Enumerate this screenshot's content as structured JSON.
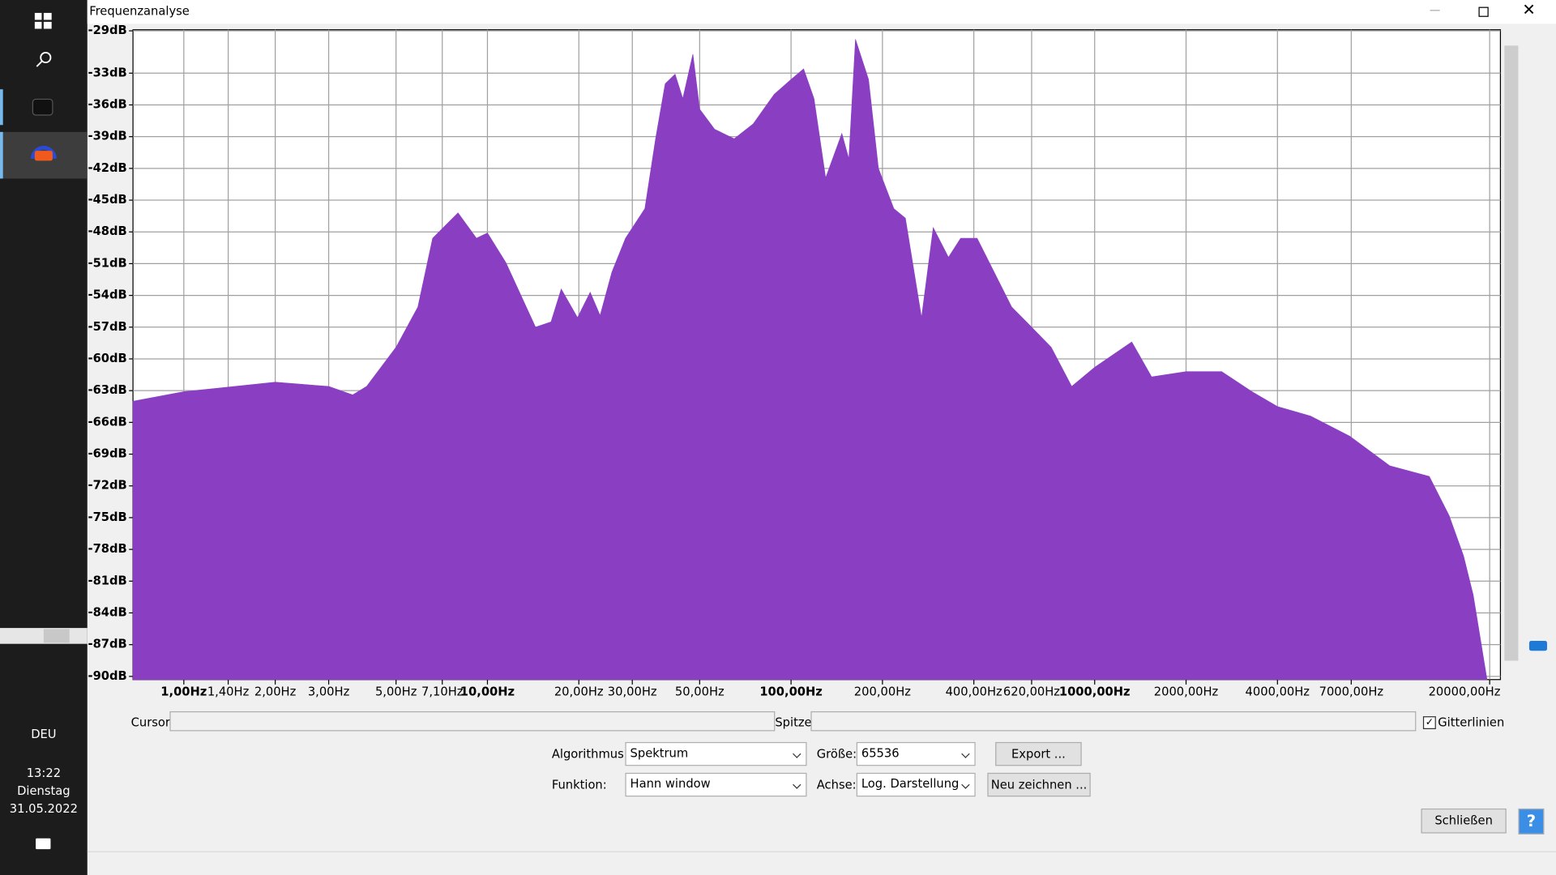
{
  "window": {
    "title": "Frequenzanalyse"
  },
  "taskbar": {
    "language": "DEU",
    "time": "13:22",
    "weekday": "Dienstag",
    "date": "31.05.2022"
  },
  "chart_data": {
    "type": "area",
    "x": [
      0.68,
      1,
      2,
      3,
      3.6,
      4,
      5,
      5.9,
      6.6,
      8,
      9.2,
      10,
      11.5,
      14.4,
      16.2,
      17.5,
      19.8,
      21.8,
      23.5,
      25.7,
      28.5,
      33,
      35.8,
      38.5,
      41.5,
      44,
      47.5,
      50,
      56,
      65,
      75,
      88,
      100,
      110,
      119,
      130,
      147,
      155,
      163,
      180,
      194,
      218,
      238,
      269,
      294,
      330,
      362,
      410,
      459,
      533,
      620,
      719,
      840,
      1000,
      1325,
      1540,
      2000,
      2620,
      3300,
      4000,
      5140,
      6920,
      9370,
      12650,
      14700,
      16400,
      17650,
      19600
    ],
    "values": [
      -64,
      -63.1,
      -62.2,
      -62.6,
      -63.4,
      -62.6,
      -58.9,
      -55.1,
      -48.6,
      -46.2,
      -48.6,
      -48.1,
      -50.9,
      -57,
      -56.5,
      -53.4,
      -56.1,
      -53.7,
      -55.9,
      -51.8,
      -48.6,
      -45.8,
      -39.2,
      -34,
      -33.1,
      -35.4,
      -31.2,
      -36.4,
      -38.3,
      -39.2,
      -37.8,
      -35,
      -33.6,
      -32.6,
      -35.4,
      -42.9,
      -38.7,
      -41.1,
      -29.8,
      -33.6,
      -42,
      -45.8,
      -46.7,
      -56.1,
      -47.6,
      -50.4,
      -48.6,
      -48.6,
      -51.4,
      -55.1,
      -57,
      -58.9,
      -62.6,
      -60.8,
      -58.4,
      -61.7,
      -61.2,
      -61.2,
      -63.1,
      -64.5,
      -65.4,
      -67.3,
      -70.1,
      -71.1,
      -74.8,
      -78.6,
      -82.3,
      -90.3
    ],
    "color": "#8a3fc2",
    "xscale": "log",
    "xlim": [
      0.68,
      21700
    ],
    "ylim": [
      -90.3,
      -28.9
    ],
    "xticks": [
      {
        "value": 1,
        "label": "1,00Hz"
      },
      {
        "value": 1.4,
        "label": "1,40Hz"
      },
      {
        "value": 2,
        "label": "2,00Hz"
      },
      {
        "value": 3,
        "label": "3,00Hz"
      },
      {
        "value": 5,
        "label": "5,00Hz"
      },
      {
        "value": 7.1,
        "label": "7,10Hz"
      },
      {
        "value": 10,
        "label": "10,00Hz"
      },
      {
        "value": 20,
        "label": "20,00Hz"
      },
      {
        "value": 30,
        "label": "30,00Hz"
      },
      {
        "value": 50,
        "label": "50,00Hz"
      },
      {
        "value": 100,
        "label": "100,00Hz"
      },
      {
        "value": 200,
        "label": "200,00Hz"
      },
      {
        "value": 400,
        "label": "400,00Hz"
      },
      {
        "value": 620,
        "label": "620,00Hz"
      },
      {
        "value": 1000,
        "label": "1000,00Hz"
      },
      {
        "value": 2000,
        "label": "2000,00Hz"
      },
      {
        "value": 4000,
        "label": "4000,00Hz"
      },
      {
        "value": 7000,
        "label": "7000,00Hz"
      },
      {
        "value": 20000,
        "label": "20000,00Hz"
      }
    ],
    "yticks": [
      {
        "value": -29,
        "label": "-29dB"
      },
      {
        "value": -33,
        "label": "-33dB"
      },
      {
        "value": -36,
        "label": "-36dB"
      },
      {
        "value": -39,
        "label": "-39dB"
      },
      {
        "value": -42,
        "label": "-42dB"
      },
      {
        "value": -45,
        "label": "-45dB"
      },
      {
        "value": -48,
        "label": "-48dB"
      },
      {
        "value": -51,
        "label": "-51dB"
      },
      {
        "value": -54,
        "label": "-54dB"
      },
      {
        "value": -57,
        "label": "-57dB"
      },
      {
        "value": -60,
        "label": "-60dB"
      },
      {
        "value": -63,
        "label": "-63dB"
      },
      {
        "value": -66,
        "label": "-66dB"
      },
      {
        "value": -69,
        "label": "-69dB"
      },
      {
        "value": -72,
        "label": "-72dB"
      },
      {
        "value": -75,
        "label": "-75dB"
      },
      {
        "value": -78,
        "label": "-78dB"
      },
      {
        "value": -81,
        "label": "-81dB"
      },
      {
        "value": -84,
        "label": "-84dB"
      },
      {
        "value": -87,
        "label": "-87dB"
      },
      {
        "value": -90,
        "label": "-90dB"
      }
    ],
    "grid": true
  },
  "controls": {
    "cursor_label": "Cursor:",
    "peak_label": "Spitze:",
    "grid_checkbox": "Gitterlinien",
    "algorithm_label": "Algorithmus:",
    "algorithm": "Spektrum",
    "size_label": "Größe:",
    "size": "65536",
    "export_button": "Export ...",
    "function_label": "Funktion:",
    "function": "Hann window",
    "axis_label": "Achse:",
    "axis": "Log. Darstellung",
    "redraw_button": "Neu zeichnen ...",
    "close_button": "Schließen"
  }
}
